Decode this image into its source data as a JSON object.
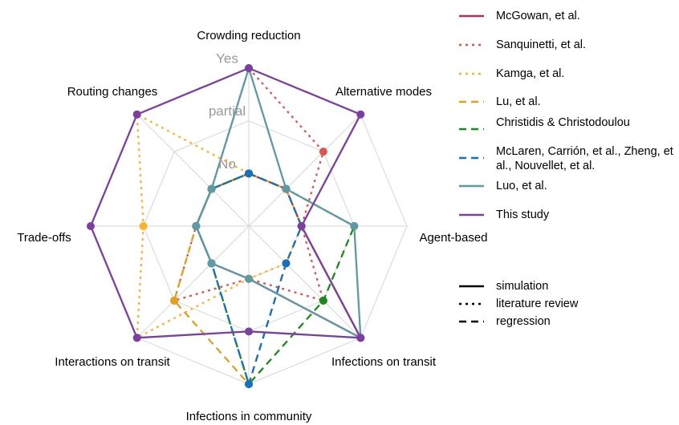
{
  "chart_data": {
    "type": "radar",
    "categories": [
      "Crowding reduction",
      "Alternative modes",
      "Agent-based",
      "Infections on transit",
      "Infections in community",
      "Interactions on transit",
      "Trade-offs",
      "Routing changes"
    ],
    "ylim": [
      -1,
      2
    ],
    "yticks": [
      {
        "value": 0,
        "label": "No"
      },
      {
        "value": 1,
        "label": "partial"
      },
      {
        "value": 2,
        "label": "Yes"
      }
    ],
    "grid": true,
    "series": [
      {
        "name": "McGowan, et al.",
        "color": "#a3345f",
        "dash": "solid",
        "values": [
          0,
          0,
          0,
          2,
          0,
          0,
          0,
          0
        ]
      },
      {
        "name": "Sanquinetti, et al.",
        "color": "#e05252",
        "dash": "dotted",
        "values": [
          2,
          1,
          0,
          1,
          0,
          1,
          0,
          0
        ]
      },
      {
        "name": "Kamga, et al.",
        "color": "#ffb02e",
        "dash": "dotted",
        "values": [
          0,
          0,
          0,
          0,
          0,
          2,
          1,
          2
        ]
      },
      {
        "name": "Lu, et al.",
        "color": "#e0a020",
        "dash": "dashed",
        "values": [
          0,
          0,
          0,
          0,
          2,
          1,
          0,
          0
        ]
      },
      {
        "name": "Christidis & Christodoulou",
        "color": "#1a8a1a",
        "dash": "dashed",
        "values": [
          0,
          0,
          1,
          1,
          2,
          0,
          0,
          0
        ]
      },
      {
        "name": "McLaren, Carrión, et al., Zheng, et al., Nouvellet, et al.",
        "color": "#1570c0",
        "dash": "dashed",
        "values": [
          0,
          0,
          0,
          0,
          2,
          0,
          0,
          0
        ]
      },
      {
        "name": "Luo, et al.",
        "color": "#5f9aa3",
        "dash": "solid",
        "values": [
          2,
          0,
          1,
          2,
          0,
          0,
          0,
          0
        ]
      },
      {
        "name": "This study",
        "color": "#7b3f9f",
        "dash": "solid",
        "values": [
          2,
          2,
          0,
          2,
          1,
          2,
          2,
          2
        ]
      }
    ],
    "linetype_legend": [
      {
        "label": "simulation",
        "dash": "solid"
      },
      {
        "label": "literature review",
        "dash": "dotted"
      },
      {
        "label": "regression",
        "dash": "dashed"
      }
    ]
  }
}
